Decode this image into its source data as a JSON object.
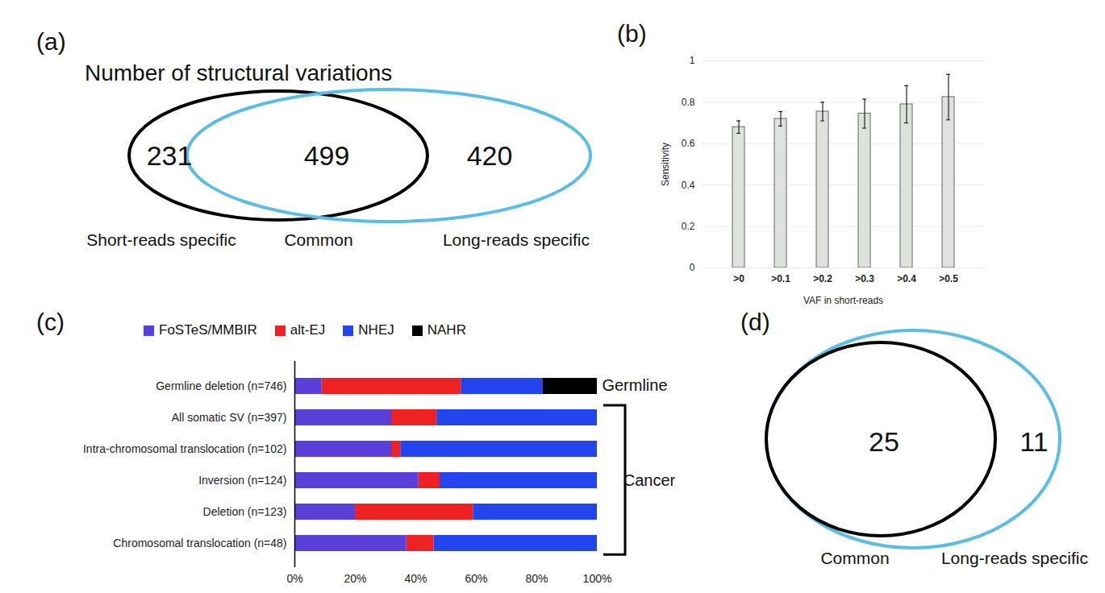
{
  "chart_data": [
    {
      "type": "venn",
      "panel": "(a)",
      "title": "Number of structural variations",
      "colors": [
        "#000000",
        "#5bbde4"
      ],
      "regions": [
        {
          "label": "Short-reads specific",
          "value": 231
        },
        {
          "label": "Common",
          "value": 499
        },
        {
          "label": "Long-reads specific",
          "value": 420
        }
      ]
    },
    {
      "type": "bar",
      "panel": "(b)",
      "categories": [
        ">0",
        ">0.1",
        ">0.2",
        ">0.3",
        ">0.4",
        ">0.5"
      ],
      "values": [
        0.68,
        0.72,
        0.755,
        0.745,
        0.79,
        0.825
      ],
      "errors": [
        0.03,
        0.035,
        0.045,
        0.07,
        0.09,
        0.11
      ],
      "color": "#dde3dc",
      "xlabel": "VAF in short-reads",
      "ylabel": "Sensitivity",
      "ylim": [
        0,
        1
      ],
      "yticks": [
        0,
        0.2,
        0.4,
        0.6,
        0.8,
        1
      ],
      "grid": true
    },
    {
      "type": "bar",
      "panel": "(c)",
      "orientation": "horizontal",
      "stacked": true,
      "legend": "top",
      "categories": [
        "Germline deletion (n=746)",
        "All somatic SV (n=397)",
        "Intra-chromosomal translocation (n=102)",
        "Inversion (n=124)",
        "Deletion (n=123)",
        "Chromosomal translocation (n=48)"
      ],
      "series": [
        {
          "name": "FoSTeS/MMBIR",
          "color": "#5a3fd8",
          "values": [
            9,
            32,
            32,
            41,
            20,
            37
          ]
        },
        {
          "name": "alt-EJ",
          "color": "#ee2222",
          "values": [
            46,
            15,
            3,
            7,
            39,
            9
          ]
        },
        {
          "name": "NHEJ",
          "color": "#2245ee",
          "values": [
            27,
            53,
            65,
            52,
            41,
            54
          ]
        },
        {
          "name": "NAHR",
          "color": "#000000",
          "values": [
            18,
            0,
            0,
            0,
            0,
            0
          ]
        }
      ],
      "xlim": [
        0,
        100
      ],
      "xticks": [
        {
          "value": 0,
          "label": "0%"
        },
        {
          "value": 20,
          "label": "20%"
        },
        {
          "value": 40,
          "label": "40%"
        },
        {
          "value": 60,
          "label": "60%"
        },
        {
          "value": 80,
          "label": "80%"
        },
        {
          "value": 100,
          "label": "100%"
        }
      ],
      "groups": [
        {
          "label": "Germline",
          "categories": [
            "Germline deletion (n=746)"
          ]
        },
        {
          "label": "Cancer",
          "categories": [
            "All somatic SV (n=397)",
            "Intra-chromosomal translocation (n=102)",
            "Inversion (n=124)",
            "Deletion (n=123)",
            "Chromosomal translocation (n=48)"
          ]
        }
      ]
    },
    {
      "type": "venn",
      "panel": "(d)",
      "colors": [
        "#000000",
        "#5bbde4"
      ],
      "regions": [
        {
          "label": "Common",
          "value": 25
        },
        {
          "label": "Long-reads specific",
          "value": 11
        }
      ]
    }
  ]
}
